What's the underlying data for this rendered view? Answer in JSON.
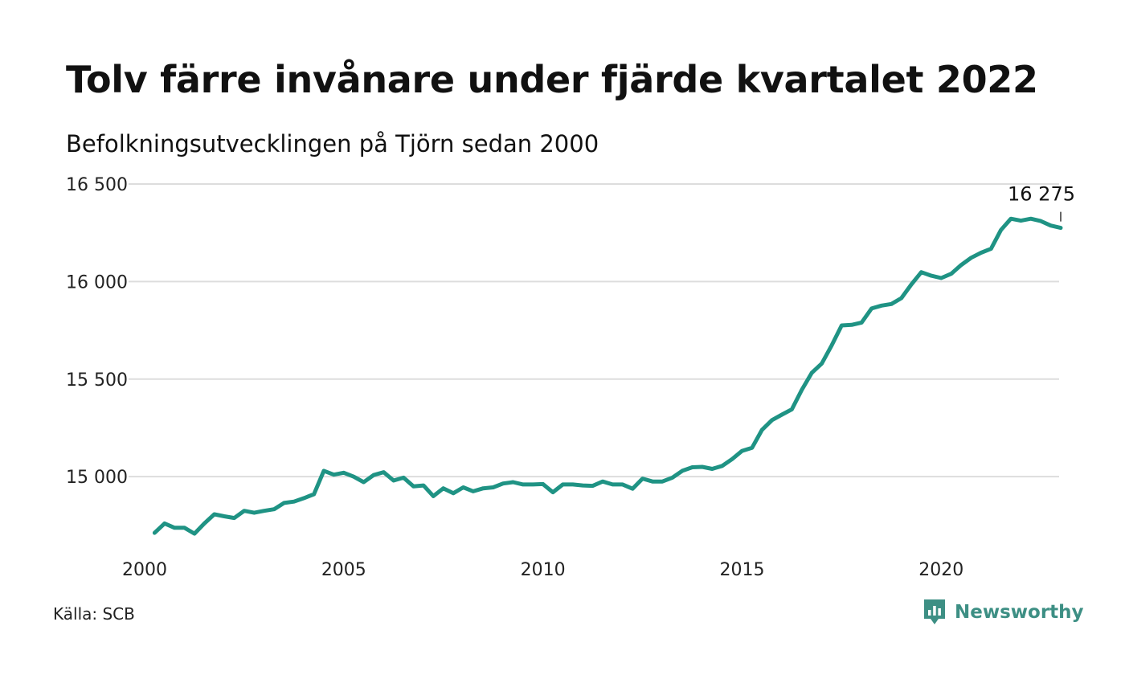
{
  "title": "Tolv färre invånare under fjärde kvartalet 2022",
  "subtitle": "Befolkningsutvecklingen på Tjörn sedan 2000",
  "source": "Källa: SCB",
  "brand": {
    "name": "Newsworthy",
    "icon": "newsworthy-logo-icon",
    "color": "#3d8f84"
  },
  "colors": {
    "line": "#1f9384",
    "grid": "#dddddd",
    "text": "#111111"
  },
  "chart_data": {
    "type": "line",
    "title": "Tolv färre invånare under fjärde kvartalet 2022",
    "subtitle": "Befolkningsutvecklingen på Tjörn sedan 2000",
    "xlabel": "",
    "ylabel": "",
    "xlim": [
      2000.0,
      2023.0
    ],
    "ylim": [
      14630,
      16500
    ],
    "x_ticks": [
      {
        "value": 2000,
        "label": "2000"
      },
      {
        "value": 2005,
        "label": "2005"
      },
      {
        "value": 2010,
        "label": "2010"
      },
      {
        "value": 2015,
        "label": "2015"
      },
      {
        "value": 2020,
        "label": "2020"
      }
    ],
    "y_ticks": [
      {
        "value": 15000,
        "label": "15 000"
      },
      {
        "value": 15500,
        "label": "15 500"
      },
      {
        "value": 16000,
        "label": "16 000"
      },
      {
        "value": 16500,
        "label": "16 500"
      }
    ],
    "grid": true,
    "legend": "none",
    "end_label": "16 275",
    "series": [
      {
        "x": [
          2000.25,
          2000.5,
          2000.75,
          2001.0,
          2001.25,
          2001.5,
          2001.75,
          2002.0,
          2002.25,
          2002.5,
          2002.75,
          2003.0,
          2003.25,
          2003.5,
          2003.75,
          2004.0,
          2004.25,
          2004.5,
          2004.75,
          2005.0,
          2005.25,
          2005.5,
          2005.75,
          2006.0,
          2006.25,
          2006.5,
          2006.75,
          2007.0,
          2007.25,
          2007.5,
          2007.75,
          2008.0,
          2008.25,
          2008.5,
          2008.75,
          2009.0,
          2009.25,
          2009.5,
          2009.75,
          2010.0,
          2010.25,
          2010.5,
          2010.75,
          2011.0,
          2011.25,
          2011.5,
          2011.75,
          2012.0,
          2012.25,
          2012.5,
          2012.75,
          2013.0,
          2013.25,
          2013.5,
          2013.75,
          2014.0,
          2014.25,
          2014.5,
          2014.75,
          2015.0,
          2015.25,
          2015.5,
          2015.75,
          2016.0,
          2016.25,
          2016.5,
          2016.75,
          2017.0,
          2017.25,
          2017.5,
          2017.75,
          2018.0,
          2018.25,
          2018.5,
          2018.75,
          2019.0,
          2019.25,
          2019.5,
          2019.75,
          2020.0,
          2020.25,
          2020.5,
          2020.75,
          2021.0,
          2021.25,
          2021.5,
          2021.75,
          2022.0,
          2022.25,
          2022.5,
          2022.75,
          2023.0
        ],
        "values": [
          14712,
          14760,
          14738,
          14738,
          14708,
          14760,
          14807,
          14797,
          14788,
          14825,
          14815,
          14825,
          14833,
          14865,
          14872,
          14890,
          14910,
          15030,
          15010,
          15020,
          15000,
          14972,
          15008,
          15023,
          14980,
          14995,
          14950,
          14955,
          14900,
          14940,
          14915,
          14945,
          14925,
          14940,
          14945,
          14965,
          14972,
          14960,
          14960,
          14962,
          14920,
          14960,
          14960,
          14955,
          14953,
          14975,
          14960,
          14960,
          14938,
          14990,
          14975,
          14975,
          14995,
          15030,
          15048,
          15050,
          15040,
          15055,
          15090,
          15132,
          15148,
          15240,
          15290,
          15318,
          15345,
          15445,
          15532,
          15580,
          15673,
          15775,
          15778,
          15790,
          15862,
          15877,
          15885,
          15915,
          15985,
          16048,
          16030,
          16018,
          16040,
          16085,
          16122,
          16148,
          16168,
          16265,
          16322,
          16312,
          16322,
          16310,
          16287,
          16275
        ]
      }
    ]
  }
}
